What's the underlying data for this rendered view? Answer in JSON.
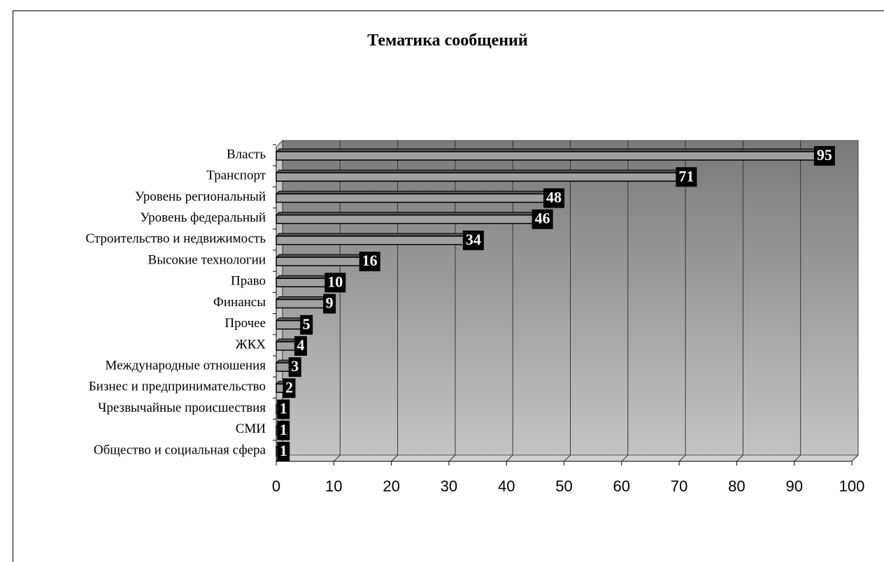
{
  "chart_data": {
    "type": "barh",
    "title": "Тематика сообщений",
    "categories": [
      "Власть",
      "Транспорт",
      "Уровень региональный",
      "Уровень федеральный",
      "Строительство и недвижимость",
      "Высокие технологии",
      "Право",
      "Финансы",
      "Прочее",
      "ЖКХ",
      "Международные отношения",
      "Бизнес и предпринимательство",
      "Чрезвычайные происшествия",
      "СМИ",
      "Общество и социальная сфера"
    ],
    "values": [
      95,
      71,
      48,
      46,
      34,
      16,
      10,
      9,
      5,
      4,
      3,
      2,
      1,
      1,
      1
    ],
    "color": "#a0a0a0",
    "xlim": [
      0,
      100
    ],
    "xticks": [
      0,
      10,
      20,
      30,
      40,
      50,
      60,
      70,
      80,
      90,
      100
    ],
    "grid": true
  }
}
